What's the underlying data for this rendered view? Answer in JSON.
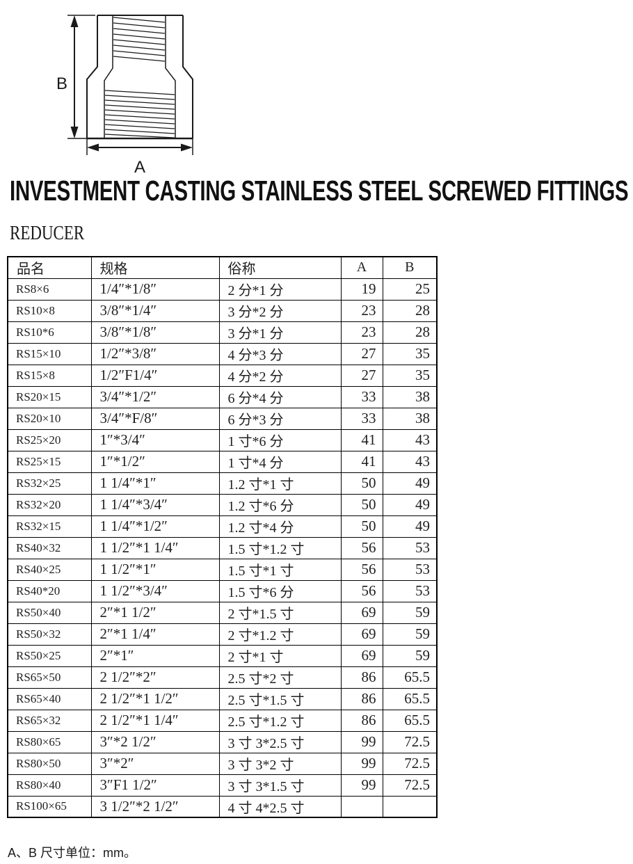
{
  "title": "INVESTMENT CASTING STAINLESS STEEL SCREWED FITTINGS",
  "section": "REDUCER",
  "diagram": {
    "type": "reducer-fitting-drawing",
    "label_a": "A",
    "label_b": "B"
  },
  "table": {
    "headers": [
      "品名",
      "规格",
      "俗称",
      "A",
      "B"
    ],
    "rows": [
      [
        "RS8×6",
        "1/4″*1/8″",
        "2 分*1 分",
        "19",
        "25"
      ],
      [
        "RS10×8",
        "3/8″*1/4″",
        "3 分*2 分",
        "23",
        "28"
      ],
      [
        "RS10*6",
        "3/8″*1/8″",
        "3 分*1 分",
        "23",
        "28"
      ],
      [
        "RS15×10",
        "1/2″*3/8″",
        "4 分*3 分",
        "27",
        "35"
      ],
      [
        "RS15×8",
        "1/2″F1/4″",
        "4 分*2 分",
        "27",
        "35"
      ],
      [
        "RS20×15",
        "3/4″*1/2″",
        "6 分*4 分",
        "33",
        "38"
      ],
      [
        "RS20×10",
        "3/4″*F/8″",
        "6 分*3 分",
        "33",
        "38"
      ],
      [
        "RS25×20",
        "1″*3/4″",
        "1 寸*6 分",
        "41",
        "43"
      ],
      [
        "RS25×15",
        "1″*1/2″",
        "1 寸*4 分",
        "41",
        "43"
      ],
      [
        "RS32×25",
        "1 1/4″*1″",
        "1.2 寸*1 寸",
        "50",
        "49"
      ],
      [
        "RS32×20",
        "1 1/4″*3/4″",
        "1.2 寸*6 分",
        "50",
        "49"
      ],
      [
        "RS32×15",
        "1 1/4″*1/2″",
        "1.2 寸*4 分",
        "50",
        "49"
      ],
      [
        "RS40×32",
        "1 1/2″*1 1/4″",
        "1.5 寸*1.2 寸",
        "56",
        "53"
      ],
      [
        "RS40×25",
        "1 1/2″*1″",
        "1.5 寸*1 寸",
        "56",
        "53"
      ],
      [
        "RS40*20",
        "1 1/2″*3/4″",
        "1.5 寸*6 分",
        "56",
        "53"
      ],
      [
        "RS50×40",
        "2″*1 1/2″",
        "2 寸*1.5 寸",
        "69",
        "59"
      ],
      [
        "RS50×32",
        "2″*1 1/4″",
        "2 寸*1.2 寸",
        "69",
        "59"
      ],
      [
        "RS50×25",
        "2″*1″",
        "2 寸*1 寸",
        "69",
        "59"
      ],
      [
        "RS65×50",
        "2 1/2″*2″",
        "2.5 寸*2 寸",
        "86",
        "65.5"
      ],
      [
        "RS65×40",
        "2 1/2″*1 1/2″",
        "2.5 寸*1.5 寸",
        "86",
        "65.5"
      ],
      [
        "RS65×32",
        "2 1/2″*1 1/4″",
        "2.5 寸*1.2 寸",
        "86",
        "65.5"
      ],
      [
        "RS80×65",
        "3″*2 1/2″",
        "3 寸 3*2.5 寸",
        "99",
        "72.5"
      ],
      [
        "RS80×50",
        "3″*2″",
        "3 寸 3*2 寸",
        "99",
        "72.5"
      ],
      [
        "RS80×40",
        "3″F1 1/2″",
        "3 寸 3*1.5 寸",
        "99",
        "72.5"
      ],
      [
        "RS100×65",
        "3 1/2″*2 1/2″",
        "4 寸 4*2.5 寸",
        "",
        ""
      ]
    ]
  },
  "footnote": "A、B 尺寸单位：mm。",
  "colors": {
    "text": "#1f1f1f",
    "border": "#000000",
    "background": "#ffffff"
  }
}
